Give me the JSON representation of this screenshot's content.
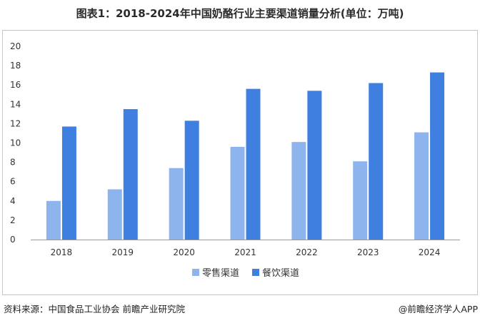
{
  "title": "图表1：2018-2024年中国奶酪行业主要渠道销量分析(单位：万吨)",
  "footer": {
    "source": "资料来源：中国食品工业协会 前瞻产业研究院",
    "brand": "@前瞻经济学人APP"
  },
  "colors": {
    "retail": "#8db4ed",
    "catering": "#3f7fe0",
    "axis": "#999999"
  },
  "chart_data": {
    "type": "bar",
    "title": "图表1：2018-2024年中国奶酪行业主要渠道销量分析(单位：万吨)",
    "categories": [
      "2018",
      "2019",
      "2020",
      "2021",
      "2022",
      "2023",
      "2024"
    ],
    "series": [
      {
        "name": "零售渠道",
        "values": [
          4.0,
          5.2,
          7.4,
          9.6,
          10.1,
          8.1,
          11.1
        ]
      },
      {
        "name": "餐饮渠道",
        "values": [
          11.7,
          13.5,
          12.3,
          15.6,
          15.4,
          16.2,
          17.3
        ]
      }
    ],
    "ylim": [
      0,
      20
    ],
    "yticks": [
      0,
      2,
      4,
      6,
      8,
      10,
      12,
      14,
      16,
      18,
      20
    ],
    "grid": false,
    "legend": "bottom"
  }
}
